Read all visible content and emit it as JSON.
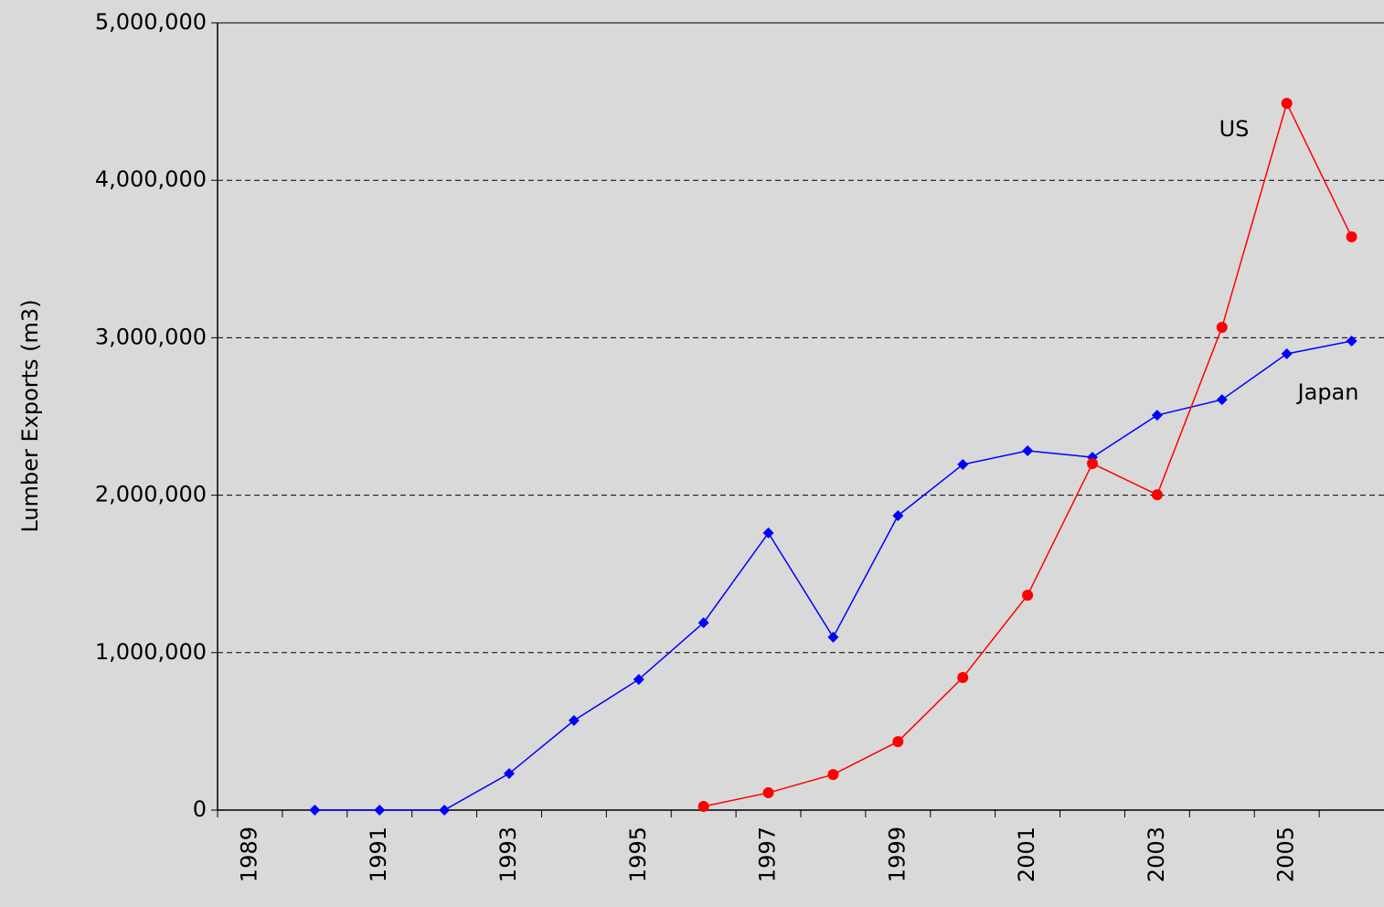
{
  "chart_data": {
    "type": "line",
    "y_label": "Lumber Exports (m3)",
    "annotations": [
      "US",
      "Japan"
    ],
    "categories": [
      "1989",
      null,
      "1991",
      null,
      "1993",
      null,
      "1995",
      null,
      "1997",
      null,
      "1999",
      null,
      "2001",
      null,
      "2003",
      null,
      "2005",
      null
    ],
    "series": [
      {
        "name": "Japan",
        "color": "#0000ff",
        "marker": "diamond",
        "values": [
          null,
          0,
          0,
          0,
          232000,
          569000,
          830000,
          1190000,
          1760000,
          1098000,
          1870000,
          2195000,
          2282000,
          2241000,
          2508000,
          2607000,
          2898000,
          2979000
        ]
      },
      {
        "name": "US",
        "color": "#ff0000",
        "marker": "circle",
        "values": [
          null,
          null,
          null,
          null,
          null,
          null,
          null,
          23000,
          110000,
          226000,
          435000,
          842000,
          1365000,
          2201000,
          2003000,
          3066000,
          4489000,
          3641000
        ]
      }
    ],
    "ylim": [
      0,
      5000000
    ],
    "yticks": [
      {
        "value": 0,
        "label": "0"
      },
      {
        "value": 1000000,
        "label": "1,000,000"
      },
      {
        "value": 2000000,
        "label": "2,000,000"
      },
      {
        "value": 3000000,
        "label": "3,000,000"
      },
      {
        "value": 4000000,
        "label": "4,000,000"
      },
      {
        "value": 5000000,
        "label": "5,000,000"
      }
    ],
    "grid": true
  }
}
